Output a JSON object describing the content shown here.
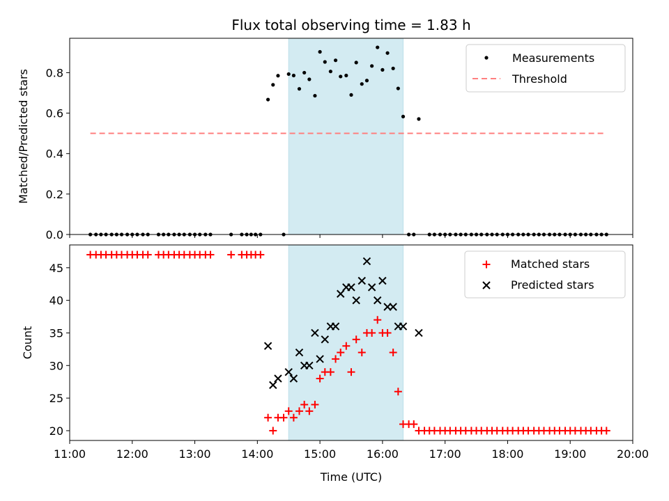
{
  "chart_data": {
    "type": "scatter",
    "title": "Flux total observing time = 1.83 h",
    "xlabel": "Time (UTC)",
    "xlim": [
      11.0,
      20.0
    ],
    "xticks": [
      "11:00",
      "12:00",
      "13:00",
      "14:00",
      "15:00",
      "16:00",
      "17:00",
      "18:00",
      "19:00",
      "20:00"
    ],
    "highlight_span": {
      "start": 14.5,
      "end": 16.33,
      "color": "#d3ebf2"
    },
    "top_panel": {
      "ylabel": "Matched/Predicted stars",
      "ylim": [
        0,
        0.97
      ],
      "yticks": [
        "0.0",
        "0.2",
        "0.4",
        "0.6",
        "0.8"
      ],
      "legend_position": "top-right",
      "threshold": {
        "name": "Threshold",
        "value": 0.5,
        "x_start": 11.33,
        "x_end": 19.58,
        "color": "#ff7f7f"
      },
      "measurements": {
        "name": "Measurements",
        "color": "#000000",
        "zero_x": [
          11.33,
          11.42,
          11.5,
          11.58,
          11.67,
          11.75,
          11.83,
          11.92,
          12.0,
          12.08,
          12.17,
          12.25,
          12.42,
          12.5,
          12.58,
          12.67,
          12.75,
          12.83,
          12.92,
          13.0,
          13.08,
          13.17,
          13.25,
          13.58,
          13.75,
          13.83,
          13.9,
          13.97,
          14.05,
          14.42,
          16.42,
          16.5,
          16.75,
          16.83,
          16.92,
          17.0,
          17.08,
          17.17,
          17.25,
          17.33,
          17.42,
          17.5,
          17.58,
          17.67,
          17.75,
          17.83,
          17.92,
          18.0,
          18.08,
          18.17,
          18.25,
          18.33,
          18.42,
          18.5,
          18.58,
          18.67,
          18.75,
          18.83,
          18.92,
          19.0,
          19.08,
          19.17,
          19.25,
          19.33,
          19.42,
          19.5,
          19.58
        ],
        "points": [
          [
            14.17,
            0.667
          ],
          [
            14.25,
            0.74
          ],
          [
            14.33,
            0.785
          ],
          [
            14.5,
            0.793
          ],
          [
            14.58,
            0.786
          ],
          [
            14.67,
            0.72
          ],
          [
            14.75,
            0.8
          ],
          [
            14.83,
            0.767
          ],
          [
            14.92,
            0.686
          ],
          [
            15.0,
            0.903
          ],
          [
            15.08,
            0.853
          ],
          [
            15.17,
            0.806
          ],
          [
            15.25,
            0.861
          ],
          [
            15.33,
            0.781
          ],
          [
            15.42,
            0.786
          ],
          [
            15.5,
            0.69
          ],
          [
            15.58,
            0.85
          ],
          [
            15.67,
            0.744
          ],
          [
            15.75,
            0.761
          ],
          [
            15.83,
            0.833
          ],
          [
            15.92,
            0.925
          ],
          [
            16.0,
            0.814
          ],
          [
            16.08,
            0.897
          ],
          [
            16.17,
            0.821
          ],
          [
            16.25,
            0.722
          ],
          [
            16.33,
            0.583
          ],
          [
            16.58,
            0.571
          ]
        ]
      }
    },
    "bottom_panel": {
      "ylabel": "Count",
      "ylim": [
        18.5,
        48.5
      ],
      "yticks": [
        "20",
        "25",
        "30",
        "35",
        "40",
        "45"
      ],
      "legend_position": "top-right",
      "series": [
        {
          "name": "Matched stars",
          "color": "#ff0000",
          "marker": "plus",
          "points": [
            [
              11.33,
              47
            ],
            [
              11.42,
              47
            ],
            [
              11.5,
              47
            ],
            [
              11.58,
              47
            ],
            [
              11.67,
              47
            ],
            [
              11.75,
              47
            ],
            [
              11.83,
              47
            ],
            [
              11.92,
              47
            ],
            [
              12.0,
              47
            ],
            [
              12.08,
              47
            ],
            [
              12.17,
              47
            ],
            [
              12.25,
              47
            ],
            [
              12.42,
              47
            ],
            [
              12.5,
              47
            ],
            [
              12.58,
              47
            ],
            [
              12.67,
              47
            ],
            [
              12.75,
              47
            ],
            [
              12.83,
              47
            ],
            [
              12.92,
              47
            ],
            [
              13.0,
              47
            ],
            [
              13.08,
              47
            ],
            [
              13.17,
              47
            ],
            [
              13.25,
              47
            ],
            [
              13.58,
              47
            ],
            [
              13.75,
              47
            ],
            [
              13.83,
              47
            ],
            [
              13.9,
              47
            ],
            [
              13.97,
              47
            ],
            [
              14.05,
              47
            ],
            [
              14.17,
              22
            ],
            [
              14.25,
              20
            ],
            [
              14.33,
              22
            ],
            [
              14.42,
              22
            ],
            [
              14.5,
              23
            ],
            [
              14.58,
              22
            ],
            [
              14.67,
              23
            ],
            [
              14.75,
              24
            ],
            [
              14.83,
              23
            ],
            [
              14.92,
              24
            ],
            [
              15.0,
              28
            ],
            [
              15.08,
              29
            ],
            [
              15.17,
              29
            ],
            [
              15.25,
              31
            ],
            [
              15.33,
              32
            ],
            [
              15.42,
              33
            ],
            [
              15.5,
              29
            ],
            [
              15.58,
              34
            ],
            [
              15.67,
              32
            ],
            [
              15.75,
              35
            ],
            [
              15.83,
              35
            ],
            [
              15.92,
              37
            ],
            [
              16.0,
              35
            ],
            [
              16.08,
              35
            ],
            [
              16.17,
              32
            ],
            [
              16.25,
              26
            ],
            [
              16.33,
              21
            ],
            [
              16.42,
              21
            ],
            [
              16.5,
              21
            ],
            [
              16.58,
              20
            ],
            [
              16.67,
              20
            ],
            [
              16.75,
              20
            ],
            [
              16.83,
              20
            ],
            [
              16.92,
              20
            ],
            [
              17.0,
              20
            ],
            [
              17.08,
              20
            ],
            [
              17.17,
              20
            ],
            [
              17.25,
              20
            ],
            [
              17.33,
              20
            ],
            [
              17.42,
              20
            ],
            [
              17.5,
              20
            ],
            [
              17.58,
              20
            ],
            [
              17.67,
              20
            ],
            [
              17.75,
              20
            ],
            [
              17.83,
              20
            ],
            [
              17.92,
              20
            ],
            [
              18.0,
              20
            ],
            [
              18.08,
              20
            ],
            [
              18.17,
              20
            ],
            [
              18.25,
              20
            ],
            [
              18.33,
              20
            ],
            [
              18.42,
              20
            ],
            [
              18.5,
              20
            ],
            [
              18.58,
              20
            ],
            [
              18.67,
              20
            ],
            [
              18.75,
              20
            ],
            [
              18.83,
              20
            ],
            [
              18.92,
              20
            ],
            [
              19.0,
              20
            ],
            [
              19.08,
              20
            ],
            [
              19.17,
              20
            ],
            [
              19.25,
              20
            ],
            [
              19.33,
              20
            ],
            [
              19.42,
              20
            ],
            [
              19.5,
              20
            ],
            [
              19.58,
              20
            ]
          ]
        },
        {
          "name": "Predicted stars",
          "color": "#000000",
          "marker": "x",
          "points": [
            [
              14.17,
              33
            ],
            [
              14.25,
              27
            ],
            [
              14.33,
              28
            ],
            [
              14.5,
              29
            ],
            [
              14.58,
              28
            ],
            [
              14.67,
              32
            ],
            [
              14.75,
              30
            ],
            [
              14.83,
              30
            ],
            [
              14.92,
              35
            ],
            [
              15.0,
              31
            ],
            [
              15.08,
              34
            ],
            [
              15.17,
              36
            ],
            [
              15.25,
              36
            ],
            [
              15.33,
              41
            ],
            [
              15.42,
              42
            ],
            [
              15.5,
              42
            ],
            [
              15.58,
              40
            ],
            [
              15.67,
              43
            ],
            [
              15.75,
              46
            ],
            [
              15.83,
              42
            ],
            [
              15.92,
              40
            ],
            [
              16.0,
              43
            ],
            [
              16.08,
              39
            ],
            [
              16.17,
              39
            ],
            [
              16.25,
              36
            ],
            [
              16.33,
              36
            ],
            [
              16.58,
              35
            ]
          ]
        }
      ]
    }
  }
}
